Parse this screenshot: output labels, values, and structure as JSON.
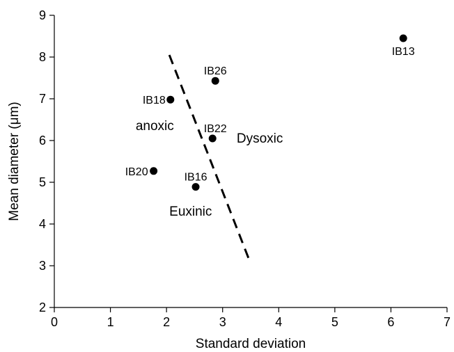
{
  "chart_data": {
    "type": "scatter",
    "title": "",
    "xlabel": "Standard deviation",
    "ylabel": "Mean diameter (μm)",
    "xlim": [
      0,
      7
    ],
    "ylim": [
      2,
      9
    ],
    "xticks": [
      0,
      1,
      2,
      3,
      4,
      5,
      6,
      7
    ],
    "yticks": [
      2,
      3,
      4,
      5,
      6,
      7,
      8,
      9
    ],
    "grid": false,
    "points": [
      {
        "label": "IB13",
        "x": 6.22,
        "y": 8.45
      },
      {
        "label": "IB26",
        "x": 2.87,
        "y": 7.43
      },
      {
        "label": "IB18",
        "x": 2.07,
        "y": 6.98
      },
      {
        "label": "IB22",
        "x": 2.82,
        "y": 6.05
      },
      {
        "label": "IB20",
        "x": 1.77,
        "y": 5.27
      },
      {
        "label": "IB16",
        "x": 2.52,
        "y": 4.89
      }
    ],
    "divider_line": {
      "style": "dashed",
      "from": [
        2.05,
        8.05
      ],
      "to": [
        3.5,
        3.05
      ]
    },
    "annotations": [
      {
        "text": "anoxic",
        "x": 1.45,
        "y": 6.25
      },
      {
        "text": "Dysoxic",
        "x": 3.25,
        "y": 5.95
      },
      {
        "text": "Euxinic",
        "x": 2.05,
        "y": 4.2
      }
    ]
  }
}
